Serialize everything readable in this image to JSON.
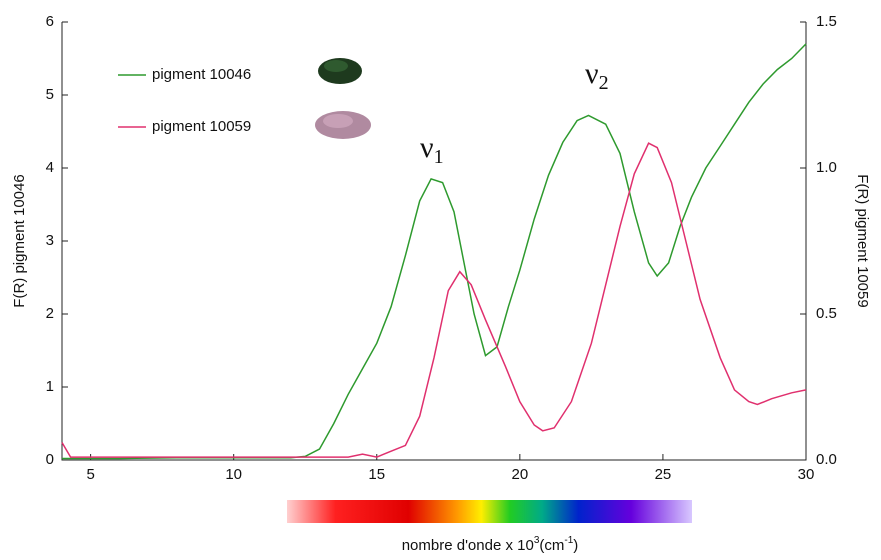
{
  "chart_data": {
    "type": "line",
    "x_label": {
      "main": "nombre d'onde x 10",
      "sup1": "3",
      "mid": "(cm",
      "sup2": "-1",
      "end": ")"
    },
    "y_label": "F(R) pigment 10046",
    "y2_label": "F(R) pigment 10059",
    "annotations": [
      {
        "symbol": "ν",
        "sub": "1"
      },
      {
        "symbol": "ν",
        "sub": "2"
      }
    ],
    "xlim": [
      4,
      30
    ],
    "xticks": [
      5,
      10,
      15,
      20,
      25,
      30
    ],
    "ylim": [
      0,
      6
    ],
    "yticks": [
      0,
      1,
      2,
      3,
      4,
      5,
      6
    ],
    "y2lim": [
      0,
      1.5
    ],
    "y2ticks": [
      {
        "value": 0,
        "label": "0.0"
      },
      {
        "value": 0.5,
        "label": "0.5"
      },
      {
        "value": 1,
        "label": "1.0"
      },
      {
        "value": 1.5,
        "label": "1.5"
      }
    ],
    "legend": "upper left",
    "series": [
      {
        "name": "pigment 10046",
        "color": "#2e9a2e",
        "x": [
          4,
          5,
          6,
          8,
          10,
          12,
          12.5,
          13,
          13.5,
          14,
          14.5,
          15,
          15.5,
          16,
          16.5,
          16.9,
          17.3,
          17.7,
          18,
          18.4,
          18.8,
          19.2,
          19.6,
          20,
          20.5,
          21,
          21.5,
          22,
          22.4,
          23,
          23.5,
          24,
          24.5,
          24.8,
          25.2,
          25.6,
          26,
          26.5,
          27,
          27.5,
          28,
          28.5,
          29,
          29.5,
          30
        ],
        "values": [
          0.02,
          0.02,
          0.02,
          0.03,
          0.03,
          0.03,
          0.05,
          0.15,
          0.5,
          0.9,
          1.25,
          1.6,
          2.1,
          2.8,
          3.55,
          3.85,
          3.8,
          3.4,
          2.8,
          2.0,
          1.43,
          1.55,
          2.1,
          2.6,
          3.3,
          3.9,
          4.35,
          4.65,
          4.72,
          4.6,
          4.2,
          3.4,
          2.7,
          2.52,
          2.7,
          3.2,
          3.6,
          4.0,
          4.3,
          4.6,
          4.9,
          5.15,
          5.35,
          5.5,
          5.7
        ]
      },
      {
        "name": "pigment 10059",
        "color": "#e0306e",
        "axis": "y2",
        "x": [
          4,
          4.3,
          6,
          8,
          10,
          12,
          13,
          14,
          14.5,
          15,
          15.5,
          16,
          16.5,
          17,
          17.5,
          17.9,
          18.3,
          18.8,
          19.5,
          20,
          20.5,
          20.8,
          21.2,
          21.8,
          22.5,
          23,
          23.5,
          24,
          24.5,
          24.8,
          25.3,
          25.8,
          26.3,
          27,
          27.5,
          28,
          28.3,
          28.8,
          29.5,
          30
        ],
        "values": [
          0.06,
          0.01,
          0.01,
          0.01,
          0.01,
          0.01,
          0.01,
          0.01,
          0.02,
          0.01,
          0.03,
          0.05,
          0.15,
          0.35,
          0.58,
          0.645,
          0.6,
          0.48,
          0.32,
          0.2,
          0.12,
          0.1,
          0.11,
          0.2,
          0.4,
          0.6,
          0.8,
          0.98,
          1.085,
          1.07,
          0.95,
          0.75,
          0.55,
          0.35,
          0.24,
          0.2,
          0.19,
          0.21,
          0.23,
          0.24
        ]
      }
    ]
  }
}
